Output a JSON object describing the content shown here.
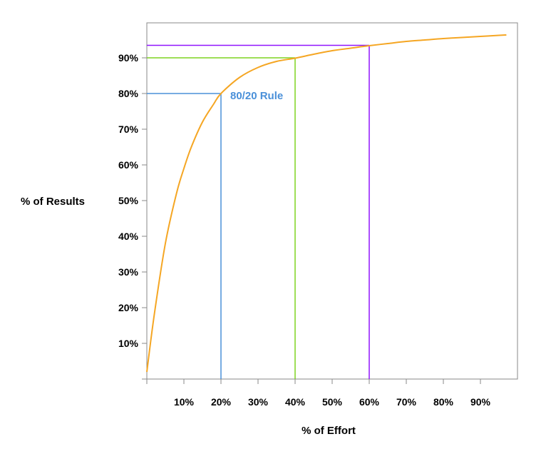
{
  "colors": {
    "curve": "#f5a623",
    "line_20": "#4a90d9",
    "line_40": "#7ed321",
    "line_60": "#9013fe",
    "axis": "#888888",
    "text": "#000000"
  },
  "chart_data": {
    "type": "line",
    "title": "",
    "xlabel": "% of Effort",
    "ylabel": "% of Results",
    "xlim": [
      0,
      100
    ],
    "ylim": [
      0,
      100
    ],
    "x_ticks": [
      10,
      20,
      30,
      40,
      50,
      60,
      70,
      80,
      90
    ],
    "x_tick_labels": [
      "10%",
      "20%",
      "30%",
      "40%",
      "50%",
      "60%",
      "70%",
      "80%",
      "90%"
    ],
    "y_ticks": [
      10,
      20,
      30,
      40,
      50,
      60,
      70,
      80,
      90
    ],
    "y_tick_labels": [
      "10%",
      "20%",
      "30%",
      "40%",
      "50%",
      "60%",
      "70%",
      "80%",
      "90%"
    ],
    "grid": false,
    "series": [
      {
        "x": [
          0,
          2,
          5,
          8,
          10,
          12,
          15,
          18,
          20,
          25,
          30,
          35,
          40,
          45,
          50,
          55,
          60,
          65,
          70,
          75,
          80,
          85,
          90,
          95,
          97
        ],
        "y": [
          2,
          18,
          38,
          52,
          59,
          65,
          72,
          77,
          80,
          84.5,
          87.3,
          89.0,
          89.9,
          91.0,
          92.0,
          92.7,
          93.4,
          94.0,
          94.6,
          95.0,
          95.4,
          95.7,
          96.0,
          96.3,
          96.4
        ]
      }
    ],
    "reference_lines": [
      {
        "x": 20,
        "y": 80,
        "color_key": "line_20"
      },
      {
        "x": 40,
        "y": 90,
        "color_key": "line_40"
      },
      {
        "x": 60,
        "y": 93.5,
        "color_key": "line_60"
      }
    ],
    "annotations": [
      {
        "text": "80/20 Rule",
        "x": 20,
        "y": 80,
        "color_key": "line_20"
      }
    ]
  }
}
